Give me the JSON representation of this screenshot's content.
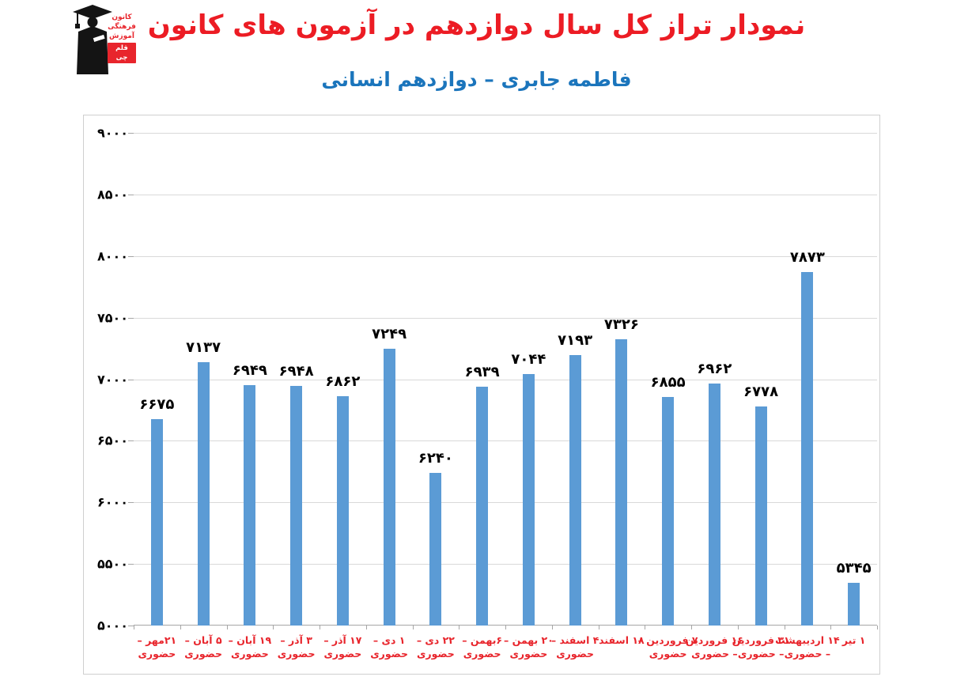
{
  "logo": {
    "line1": "کانون",
    "line2": "فرهنگی",
    "line3": "آموزش",
    "badge": "قلم چی"
  },
  "header": {
    "title": "نمودار تراز کل سال دوازدهم در آزمون های کانون",
    "subtitle": "فاطمه جابری – دوازدهم انسانی",
    "title_color": "#ec1c24",
    "subtitle_color": "#1b75bc"
  },
  "chart_data": {
    "type": "bar",
    "title": "نمودار تراز کل سال دوازدهم در آزمون های کانون",
    "subtitle": "فاطمه جابری – دوازدهم انسانی",
    "categories": [
      [
        "۲۱مهر –",
        "حضوری"
      ],
      [
        "۵ آبان –",
        "حضوری"
      ],
      [
        "۱۹ آبان –",
        "حضوری"
      ],
      [
        "۳ آذر –",
        "حضوری"
      ],
      [
        "۱۷ آذر –",
        "حضوری"
      ],
      [
        "۱ دی –",
        "حضوری"
      ],
      [
        "۲۲ دی –",
        "حضوری"
      ],
      [
        "۶بهمن –",
        "حضوری"
      ],
      [
        "۲۰ بهمن –",
        "حضوری"
      ],
      [
        "۴ اسفند –",
        "حضوری"
      ],
      [
        "۱۸ اسفند",
        ""
      ],
      [
        "۷ فروردین –",
        "حضوری"
      ],
      [
        "۱۶ فروردین",
        "– حضوری"
      ],
      [
        "۳۱ فروردین",
        "– حضوری"
      ],
      [
        "۱۴ اردیبهشت",
        "– حضوری"
      ],
      [
        "۱ تیر",
        ""
      ]
    ],
    "values": [
      6675,
      7137,
      6949,
      6948,
      6862,
      7249,
      6240,
      6939,
      7044,
      7193,
      7326,
      6855,
      6962,
      6778,
      7873,
      5345
    ],
    "value_labels_fa": [
      "۶۶۷۵",
      "۷۱۳۷",
      "۶۹۴۹",
      "۶۹۴۸",
      "۶۸۶۲",
      "۷۲۴۹",
      "۶۲۴۰",
      "۶۹۳۹",
      "۷۰۴۴",
      "۷۱۹۳",
      "۷۳۲۶",
      "۶۸۵۵",
      "۶۹۶۲",
      "۶۷۷۸",
      "۷۸۷۳",
      "۵۳۴۵"
    ],
    "yticks": [
      5000,
      5500,
      6000,
      6500,
      7000,
      7500,
      8000,
      8500,
      9000
    ],
    "ytick_labels_fa": [
      "۵۰۰۰",
      "۵۵۰۰",
      "۶۰۰۰",
      "۶۵۰۰",
      "۷۰۰۰",
      "۷۵۰۰",
      "۸۰۰۰",
      "۸۵۰۰",
      "۹۰۰۰"
    ],
    "ylim": [
      5000,
      9000
    ],
    "xlabel": "",
    "ylabel": "",
    "grid": true,
    "legend": "none",
    "bar_color": "#5b9bd5",
    "gridline_color": "#d9d9d9",
    "xlabel_color": "#e8252c"
  }
}
